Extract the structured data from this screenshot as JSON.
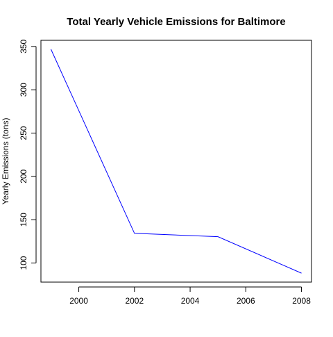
{
  "chart_data": {
    "type": "line",
    "title": "Total Yearly Vehicle Emissions for Baltimore",
    "xlabel": "",
    "ylabel": "Yearly Emissions (tons)",
    "x": [
      1999,
      2002,
      2005,
      2008
    ],
    "series": [
      {
        "values": [
          346.8,
          134.3,
          130.4,
          88.3
        ],
        "color": "#0000ff"
      }
    ],
    "xlim": [
      1998.64,
      2008.36
    ],
    "ylim": [
      77.97,
      357.13
    ],
    "xticks": [
      2000,
      2002,
      2004,
      2006,
      2008
    ],
    "yticks": [
      100,
      150,
      200,
      250,
      300,
      350
    ],
    "xtick_labels": [
      "2000",
      "2002",
      "2004",
      "2006",
      "2008"
    ],
    "ytick_labels": [
      "100",
      "150",
      "200",
      "250",
      "300",
      "350"
    ],
    "grid": false
  }
}
